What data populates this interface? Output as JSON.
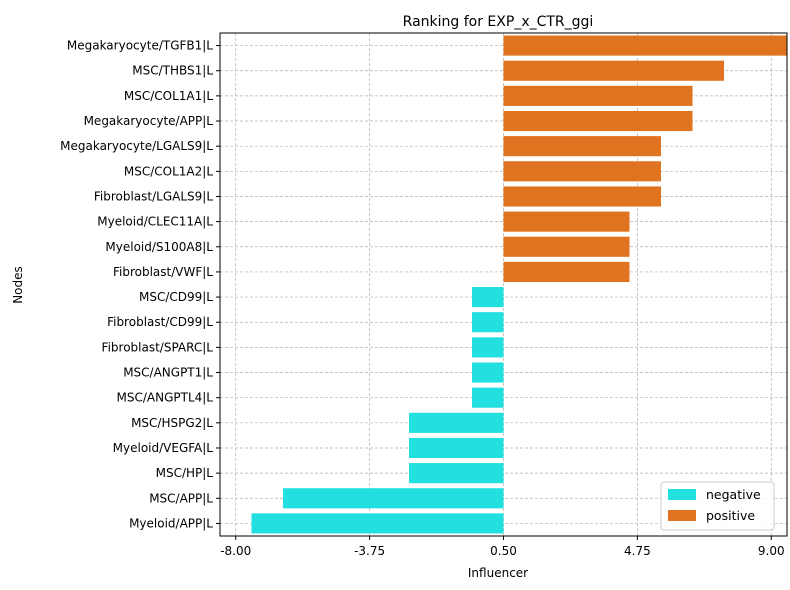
{
  "chart_data": {
    "type": "bar",
    "orientation": "horizontal",
    "title": "Ranking for EXP_x_CTR_ggi",
    "xlabel": "Influencer",
    "ylabel": "Nodes",
    "xlim": [
      -8.5,
      9.5
    ],
    "xticks": [
      -8.0,
      -3.75,
      0.5,
      4.75,
      9.0
    ],
    "xtick_labels": [
      "-8.00",
      "-3.75",
      "0.50",
      "4.75",
      "9.00"
    ],
    "grid": true,
    "legend_position": "lower-right",
    "baseline": 0.5,
    "categories": [
      "Megakaryocyte/TGFB1|L",
      "MSC/THBS1|L",
      "MSC/COL1A1|L",
      "Megakaryocyte/APP|L",
      "Megakaryocyte/LGALS9|L",
      "MSC/COL1A2|L",
      "Fibroblast/LGALS9|L",
      "Myeloid/CLEC11A|L",
      "Myeloid/S100A8|L",
      "Fibroblast/VWF|L",
      "MSC/CD99|L",
      "Fibroblast/CD99|L",
      "Fibroblast/SPARC|L",
      "MSC/ANGPT1|L",
      "MSC/ANGPTL4|L",
      "MSC/HSPG2|L",
      "Myeloid/VEGFA|L",
      "MSC/HP|L",
      "MSC/APP|L",
      "Myeloid/APP|L"
    ],
    "values": [
      9,
      7,
      6,
      6,
      5,
      5,
      5,
      4,
      4,
      4,
      -1,
      -1,
      -1,
      -1,
      -1,
      -3,
      -3,
      -3,
      -7,
      -8
    ],
    "series": [
      {
        "name": "negative",
        "color": "#22e0e0"
      },
      {
        "name": "positive",
        "color": "#e0731f"
      }
    ]
  }
}
